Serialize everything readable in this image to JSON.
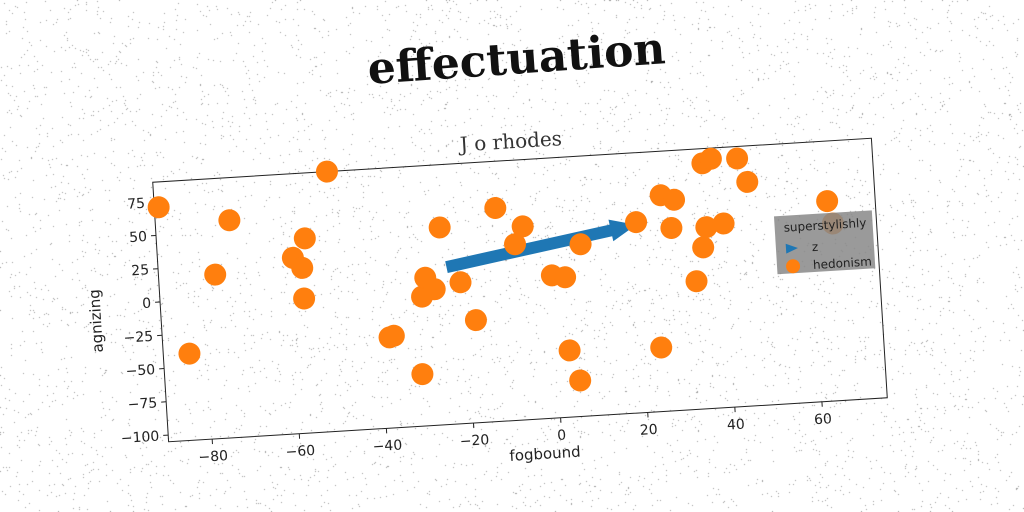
{
  "page": {
    "heading": "effectuation"
  },
  "colors": {
    "arrow": "#1f77b4",
    "points": "#ff7f0e",
    "legend_bg": "#888888"
  },
  "chart_data": {
    "type": "scatter",
    "title": "J o rhodes",
    "xlabel": "fogbound",
    "ylabel": "agnizing",
    "xlim": [
      -90,
      75
    ],
    "ylim": [
      -105,
      90
    ],
    "xticks": [
      -80,
      -60,
      -40,
      -20,
      0,
      20,
      40,
      60
    ],
    "yticks": [
      75,
      50,
      25,
      0,
      -25,
      -50,
      -75,
      -100
    ],
    "grid": false,
    "legend": {
      "title": "superstylishly",
      "position": "right",
      "entries": [
        "z",
        "hedonism"
      ]
    },
    "series": [
      {
        "name": "z",
        "kind": "arrow",
        "from": [
          -24,
          13
        ],
        "to": [
          20,
          36
        ]
      },
      {
        "name": "hedonism",
        "kind": "points",
        "x": [
          -89,
          -84,
          -77,
          -73,
          -59,
          -57,
          -57,
          -56,
          -50,
          -38,
          -37,
          -31,
          -30,
          -29,
          -27,
          -25,
          -21,
          -18,
          -12,
          -8,
          -6,
          0,
          3,
          3,
          5,
          7,
          20,
          24,
          26,
          28,
          29,
          33,
          35,
          36,
          36,
          38,
          40,
          44,
          46,
          64,
          65
        ],
        "y": [
          71,
          -40,
          18,
          58,
          27,
          -4,
          19,
          41,
          90,
          -37,
          -36,
          -66,
          -8,
          6,
          -3,
          43,
          1,
          -28,
          55,
          27,
          40,
          2,
          0,
          -55,
          -78,
          24,
          38,
          -57,
          57,
          32,
          53,
          -9,
          16,
          31,
          79,
          82,
          33,
          81,
          63,
          45,
          28
        ]
      }
    ]
  }
}
